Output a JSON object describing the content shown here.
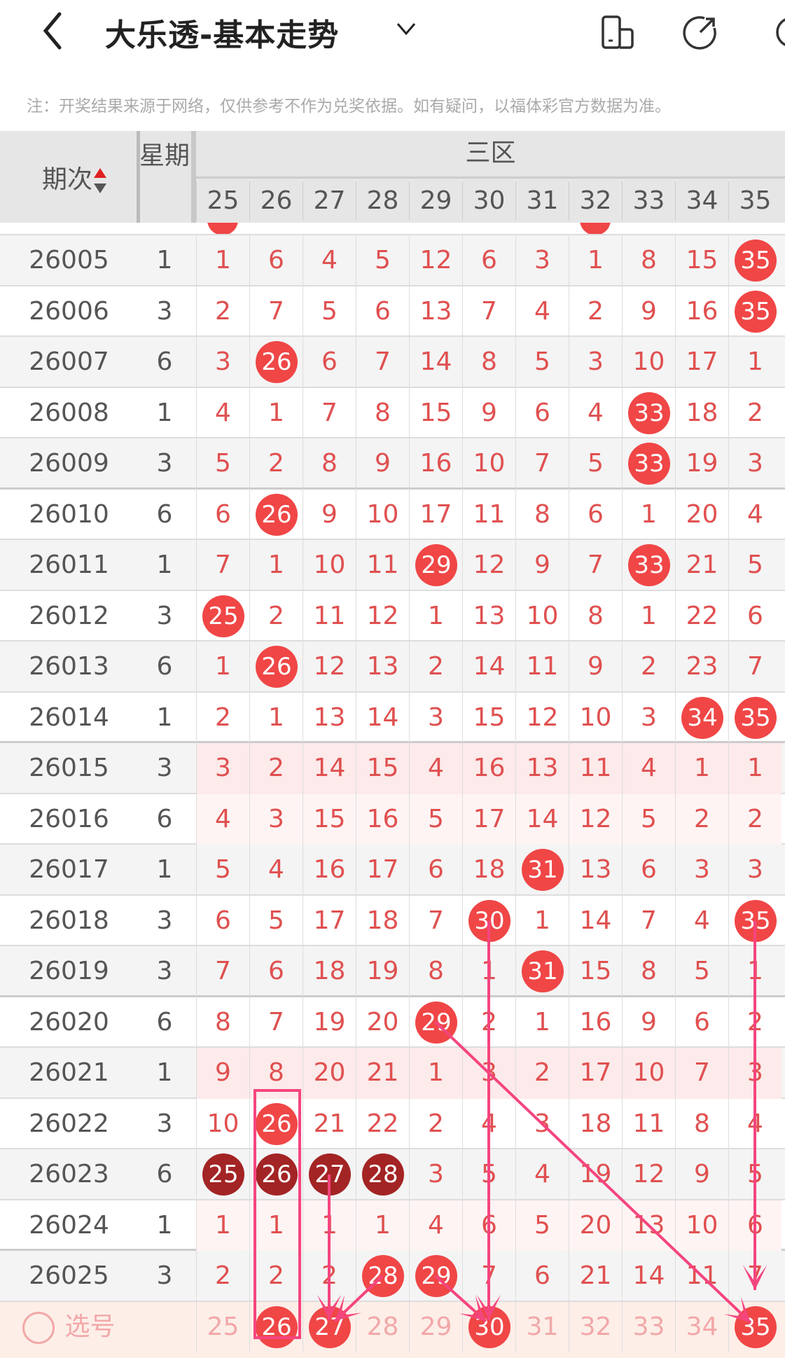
{
  "header": {
    "title": "大乐透-基本走势",
    "back_icon": "chevron-left-icon",
    "dropdown_icon": "chevron-down-icon",
    "icons": [
      "phone-layout-icon",
      "share-icon",
      "settings-icon"
    ]
  },
  "note": "注：开奖结果来源于网络，仅供参考不作为兑奖依据。如有疑问，以福体彩官方数据为准。",
  "table": {
    "issue_header": "期次",
    "week_header": "星期",
    "zone_header": "三区",
    "columns": [
      "25",
      "26",
      "27",
      "28",
      "29",
      "30",
      "31",
      "32",
      "33",
      "34",
      "35"
    ],
    "colors": {
      "ball": "#f04646",
      "ball_dark": "#a32424",
      "number": "#e05050",
      "trend_line": "#f5457e"
    },
    "rows": [
      {
        "issue": "26005",
        "week": "1",
        "cells": [
          "1",
          "6",
          "4",
          "5",
          "12",
          "6",
          "3",
          "1",
          "8",
          "15",
          "35"
        ],
        "hits": [
          10
        ]
      },
      {
        "issue": "26006",
        "week": "3",
        "cells": [
          "2",
          "7",
          "5",
          "6",
          "13",
          "7",
          "4",
          "2",
          "9",
          "16",
          "35"
        ],
        "hits": [
          10
        ]
      },
      {
        "issue": "26007",
        "week": "6",
        "cells": [
          "3",
          "26",
          "6",
          "7",
          "14",
          "8",
          "5",
          "3",
          "10",
          "17",
          "1"
        ],
        "hits": [
          1
        ]
      },
      {
        "issue": "26008",
        "week": "1",
        "cells": [
          "4",
          "1",
          "7",
          "8",
          "15",
          "9",
          "6",
          "4",
          "33",
          "18",
          "2"
        ],
        "hits": [
          8
        ]
      },
      {
        "issue": "26009",
        "week": "3",
        "cells": [
          "5",
          "2",
          "8",
          "9",
          "16",
          "10",
          "7",
          "5",
          "33",
          "19",
          "3"
        ],
        "hits": [
          8
        ]
      },
      {
        "issue": "26010",
        "week": "6",
        "cells": [
          "6",
          "26",
          "9",
          "10",
          "17",
          "11",
          "8",
          "6",
          "1",
          "20",
          "4"
        ],
        "hits": [
          1
        ]
      },
      {
        "issue": "26011",
        "week": "1",
        "cells": [
          "7",
          "1",
          "10",
          "11",
          "29",
          "12",
          "9",
          "7",
          "33",
          "21",
          "5"
        ],
        "hits": [
          4,
          8
        ]
      },
      {
        "issue": "26012",
        "week": "3",
        "cells": [
          "25",
          "2",
          "11",
          "12",
          "1",
          "13",
          "10",
          "8",
          "1",
          "22",
          "6"
        ],
        "hits": [
          0
        ]
      },
      {
        "issue": "26013",
        "week": "6",
        "cells": [
          "1",
          "26",
          "12",
          "13",
          "2",
          "14",
          "11",
          "9",
          "2",
          "23",
          "7"
        ],
        "hits": [
          1
        ]
      },
      {
        "issue": "26014",
        "week": "1",
        "cells": [
          "2",
          "1",
          "13",
          "14",
          "3",
          "15",
          "12",
          "10",
          "3",
          "34",
          "35"
        ],
        "hits": [
          9,
          10
        ]
      },
      {
        "issue": "26015",
        "week": "3",
        "cells": [
          "3",
          "2",
          "14",
          "15",
          "4",
          "16",
          "13",
          "11",
          "4",
          "1",
          "1"
        ],
        "hits": []
      },
      {
        "issue": "26016",
        "week": "6",
        "cells": [
          "4",
          "3",
          "15",
          "16",
          "5",
          "17",
          "14",
          "12",
          "5",
          "2",
          "2"
        ],
        "hits": []
      },
      {
        "issue": "26017",
        "week": "1",
        "cells": [
          "5",
          "4",
          "16",
          "17",
          "6",
          "18",
          "31",
          "13",
          "6",
          "3",
          "3"
        ],
        "hits": [
          6
        ]
      },
      {
        "issue": "26018",
        "week": "3",
        "cells": [
          "6",
          "5",
          "17",
          "18",
          "7",
          "30",
          "1",
          "14",
          "7",
          "4",
          "35"
        ],
        "hits": [
          5,
          10
        ]
      },
      {
        "issue": "26019",
        "week": "3",
        "cells": [
          "7",
          "6",
          "18",
          "19",
          "8",
          "1",
          "31",
          "15",
          "8",
          "5",
          "1"
        ],
        "hits": [
          6
        ]
      },
      {
        "issue": "26020",
        "week": "6",
        "cells": [
          "8",
          "7",
          "19",
          "20",
          "29",
          "2",
          "1",
          "16",
          "9",
          "6",
          "2"
        ],
        "hits": [
          4
        ]
      },
      {
        "issue": "26021",
        "week": "1",
        "cells": [
          "9",
          "8",
          "20",
          "21",
          "1",
          "3",
          "2",
          "17",
          "10",
          "7",
          "3"
        ],
        "hits": []
      },
      {
        "issue": "26022",
        "week": "3",
        "cells": [
          "10",
          "26",
          "21",
          "22",
          "2",
          "4",
          "3",
          "18",
          "11",
          "8",
          "4"
        ],
        "hits": [
          1
        ]
      },
      {
        "issue": "26023",
        "week": "6",
        "cells": [
          "25",
          "26",
          "27",
          "28",
          "3",
          "5",
          "4",
          "19",
          "12",
          "9",
          "5"
        ],
        "hits": [],
        "dark_hits": [
          0,
          1,
          2,
          3
        ]
      },
      {
        "issue": "26024",
        "week": "1",
        "cells": [
          "1",
          "1",
          "1",
          "1",
          "4",
          "6",
          "5",
          "20",
          "13",
          "10",
          "6"
        ],
        "hits": []
      },
      {
        "issue": "26025",
        "week": "3",
        "cells": [
          "2",
          "2",
          "2",
          "28",
          "29",
          "7",
          "6",
          "21",
          "14",
          "11",
          "7"
        ],
        "hits": [
          3,
          4
        ]
      }
    ],
    "select_row": {
      "label": "选号",
      "cells": [
        "25",
        "26",
        "27",
        "28",
        "29",
        "30",
        "31",
        "32",
        "33",
        "34",
        "35"
      ],
      "selected": [
        1,
        2,
        5,
        10
      ]
    }
  }
}
